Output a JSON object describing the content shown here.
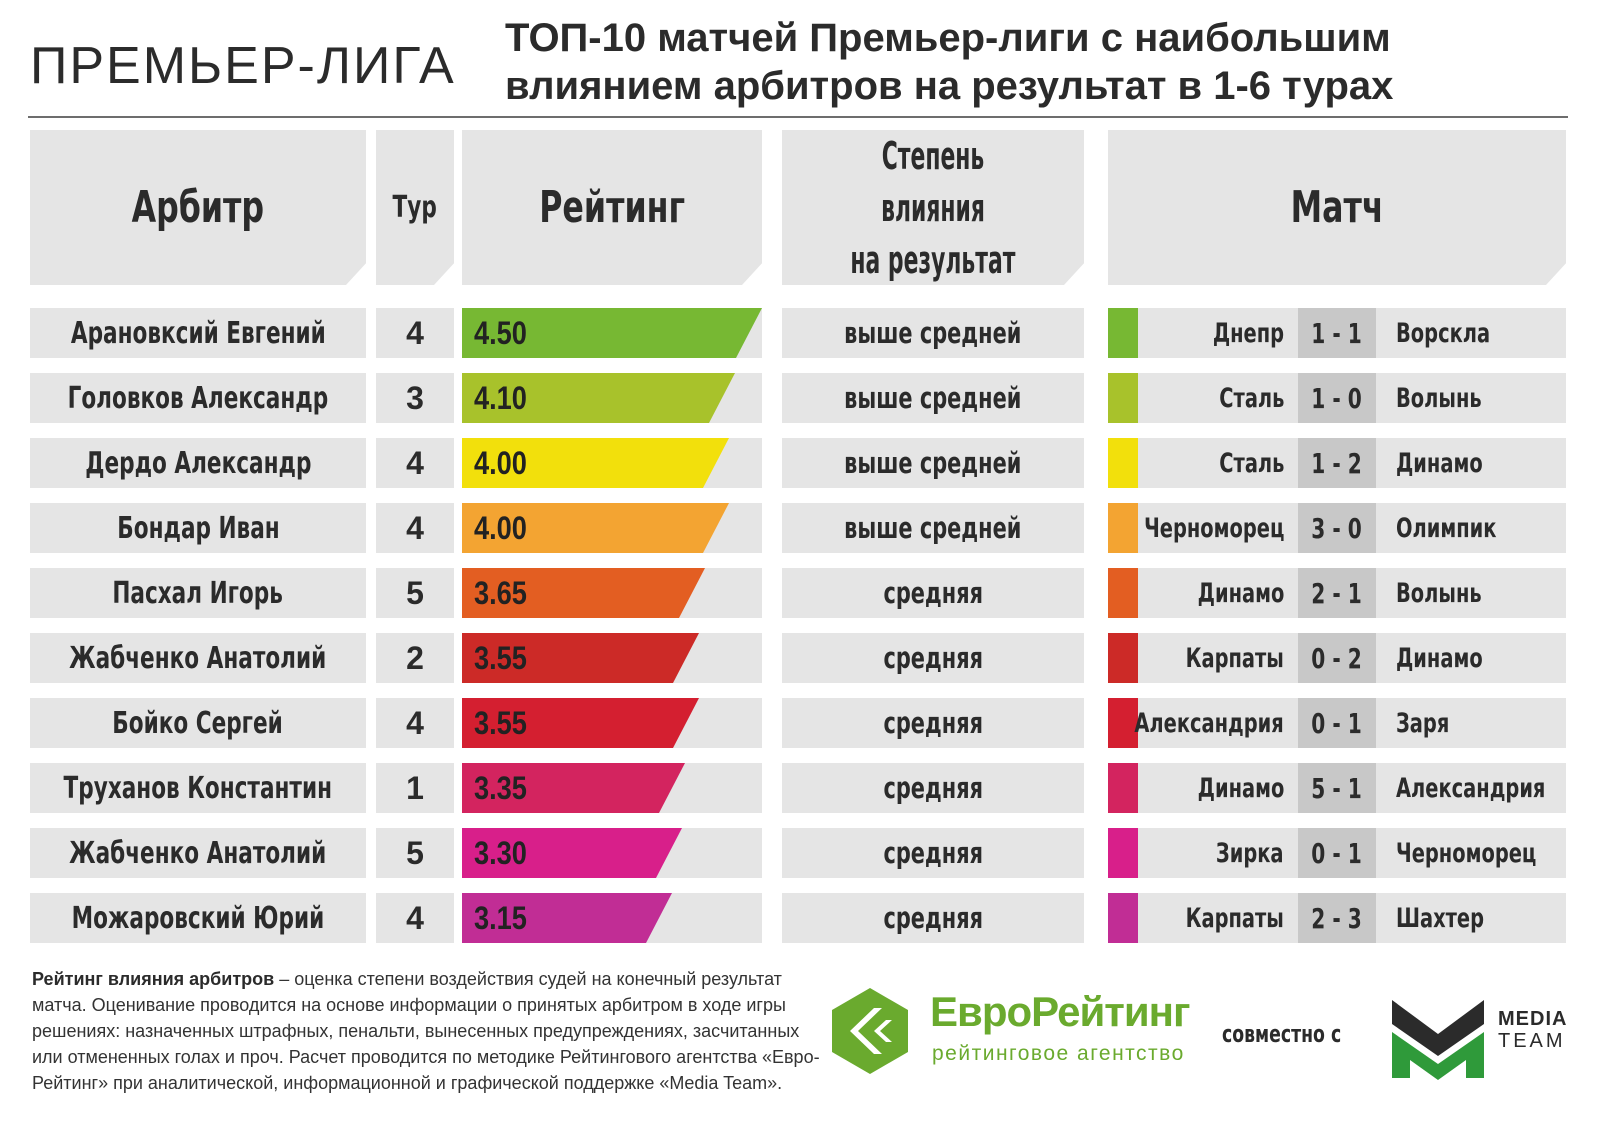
{
  "header": {
    "league": "ПРЕМЬЕР-ЛИГА",
    "title_line1": "ТОП-10 матчей Премьер-лиги с наибольшим",
    "title_line2": "влиянием арбитров на результат в 1-6 турах"
  },
  "columns": {
    "referee": "Арбитр",
    "tour": "Тур",
    "rating": "Рейтинг",
    "degree_line1": "Степень влияния",
    "degree_line2": "на результат",
    "match": "Матч"
  },
  "chart_data": {
    "type": "bar",
    "title": "ТОП-10 матчей Премьер-лиги с наибольшим влиянием арбитров на результат в 1-6 турах",
    "xlabel": "",
    "ylabel": "Рейтинг",
    "xlim": [
      0,
      4.5
    ],
    "categories": [
      "Арановксий Евгений",
      "Головков Александр",
      "Дердо Александр",
      "Бондар Иван",
      "Пасхал Игорь",
      "Жабченко Анатолий",
      "Бойко Сергей",
      "Труханов Константин",
      "Жабченко Анатолий",
      "Можаровский Юрий"
    ],
    "values": [
      4.5,
      4.1,
      4.0,
      4.0,
      3.65,
      3.55,
      3.55,
      3.35,
      3.3,
      3.15
    ],
    "rows": [
      {
        "referee": "Арановксий Евгений",
        "tour": "4",
        "rating": "4.50",
        "value": 4.5,
        "degree": "выше средней",
        "home": "Днепр",
        "score": "1 - 1",
        "away": "Ворскла",
        "color": "#77b833"
      },
      {
        "referee": "Головков Александр",
        "tour": "3",
        "rating": "4.10",
        "value": 4.1,
        "degree": "выше средней",
        "home": "Сталь",
        "score": "1 - 0",
        "away": "Волынь",
        "color": "#a8c22b"
      },
      {
        "referee": "Дердо Александр",
        "tour": "4",
        "rating": "4.00",
        "value": 4.0,
        "degree": "выше средней",
        "home": "Сталь",
        "score": "1 - 2",
        "away": "Динамо",
        "color": "#f2e00c"
      },
      {
        "referee": "Бондар Иван",
        "tour": "4",
        "rating": "4.00",
        "value": 4.0,
        "degree": "выше средней",
        "home": "Черноморец",
        "score": "3 - 0",
        "away": "Олимпик",
        "color": "#f3a432"
      },
      {
        "referee": "Пасхал Игорь",
        "tour": "5",
        "rating": "3.65",
        "value": 3.65,
        "degree": "средняя",
        "home": "Динамо",
        "score": "2 - 1",
        "away": "Волынь",
        "color": "#e35e22"
      },
      {
        "referee": "Жабченко Анатолий",
        "tour": "2",
        "rating": "3.55",
        "value": 3.55,
        "degree": "средняя",
        "home": "Карпаты",
        "score": "0 - 2",
        "away": "Динамо",
        "color": "#cc2a27"
      },
      {
        "referee": "Бойко Сергей",
        "tour": "4",
        "rating": "3.55",
        "value": 3.55,
        "degree": "средняя",
        "home": "Александрия",
        "score": "0 - 1",
        "away": "Заря",
        "color": "#d41f30"
      },
      {
        "referee": "Труханов Константин",
        "tour": "1",
        "rating": "3.35",
        "value": 3.35,
        "degree": "средняя",
        "home": "Динамо",
        "score": "5 - 1",
        "away": "Александрия",
        "color": "#d3245f"
      },
      {
        "referee": "Жабченко Анатолий",
        "tour": "5",
        "rating": "3.30",
        "value": 3.3,
        "degree": "средняя",
        "home": "Зирка",
        "score": "0 - 1",
        "away": "Черноморец",
        "color": "#d81f8a"
      },
      {
        "referee": "Можаровский Юрий",
        "tour": "4",
        "rating": "3.15",
        "value": 3.15,
        "degree": "средняя",
        "home": "Карпаты",
        "score": "2 - 3",
        "away": "Шахтер",
        "color": "#c12d95"
      }
    ]
  },
  "footer": {
    "note_bold": "Рейтинг влияния арбитров",
    "note_text": " – оценка степени воздействия судей на конечный результат матча. Оценивание проводится на основе информации о принятых арбитром в ходе игры решениях: назначенных штрафных, пенальти, вынесенных предупреждениях, засчитанных или отмененных голах и проч. Расчет проводится по методике Рейтингового агентства «Евро-Рейтинг» при аналитической, информационной и графической поддержке «Media Team».",
    "er_name": "ЕвроРейтинг",
    "er_sub": "рейтинговое агентство",
    "with": "совместно с",
    "mt_line1": "MEDIA",
    "mt_line2": "TEAM"
  },
  "colors": {
    "er_green": "#6aaa2e",
    "mt_green": "#2f9a3a",
    "bg_cell": "#e5e5e5"
  }
}
